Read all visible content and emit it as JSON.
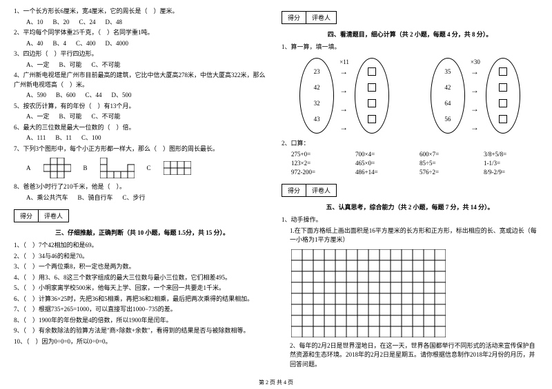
{
  "left": {
    "q1": {
      "text": "1、一个长方形长6厘米，宽4厘米，它的周长是（　）厘米。",
      "opts": [
        "A、10",
        "B、20",
        "C、24",
        "D、48"
      ]
    },
    "q2": {
      "text": "2、平均每个同学体重25千克，（　）名同学重1吨。",
      "opts": [
        "A、40",
        "B、4",
        "C、400",
        "D、4000"
      ]
    },
    "q3": {
      "text": "3、四边形（　）平行四边形。",
      "opts": [
        "A、一定",
        "B、可能",
        "C、不可能"
      ]
    },
    "q4": {
      "text": "4、广州新电视塔是广州市目前最高的建筑，它比中信大厦高278米，中信大厦高322米，那么广州新电视塔高（　）米。",
      "opts": [
        "A、590",
        "B、600",
        "C、44",
        "D、500"
      ]
    },
    "q5": {
      "text": "5、按农历计算，有的年份（　）有13个月。",
      "opts": [
        "A、一定",
        "B、可能",
        "C、不可能"
      ]
    },
    "q6": {
      "text": "6、最大的三位数是最大一位数的（　）倍。",
      "opts": [
        "A、111",
        "B、11",
        "C、100"
      ]
    },
    "q7": {
      "text": "7、下列3个图形中，每个小正方形都一样大，那么（　）图形的周长最长。"
    },
    "q8": {
      "text": "8、爸爸3小时行了210千米，他是（　）。",
      "opts": [
        "A、乘公共汽车",
        "B、骑自行车",
        "C、步行"
      ]
    },
    "scoreLabels": [
      "得分",
      "评卷人"
    ],
    "section3": "三、仔细推敲，正确判断（共 10 小题，每题 1.5分，共 15 分）。",
    "judges": [
      "1、（　）7个42相加的和是69。",
      "2、（　）34与46的和是70。",
      "3、（　）一个两位乘8，积一定也是两为数。",
      "4、（　）用3、6、8这三个数字组成的最大三位数与最小三位数，它们相差495。",
      "5、（　）小明家离学校500米，他每天上学、回家，一个来回一共要走1千米。",
      "6、（　）计算36×25时，先把36和5相乘，再把36和2相乘，最后把两次乘得的结果相加。",
      "7、（　）根据735+265=1000，可以直接写出1000−735的差。",
      "8、（　）1900年的年份数是4的倍数，所以1900年是闰年。",
      "9、（　）有余数除法的验算方法是\"商×除数+余数\"，看得到的结果是否与被除数相等。",
      "10、（　）因为0÷0=0，所以0÷0=0。"
    ],
    "shapeLabels": [
      "A",
      "B",
      "C"
    ]
  },
  "right": {
    "scoreLabels": [
      "得分",
      "评卷人"
    ],
    "section4": "四、看清题目，细心计算（共 2 小题，每题 4 分，共 8 分）。",
    "calc1Title": "1、算一算，填一填。",
    "leftNums": [
      "23",
      "42",
      "32",
      "43"
    ],
    "leftMult": "×11",
    "rightNums": [
      "35",
      "42",
      "64",
      "56"
    ],
    "rightMult": "×30",
    "mentalTitle": "2、口算：",
    "mental": [
      "275+0=",
      "700×4=",
      "600×7=",
      "3/8+5/8=",
      "123×2=",
      "465×0=",
      "85÷5=",
      "1-1/3=",
      "972-200=",
      "486+14=",
      "576÷2=",
      "8/9-2/9="
    ],
    "section5": "五、认真思考，综合能力（共 2 小题，每题 7 分，共 14 分）。",
    "task1": "1、动手操作。",
    "task1desc": "1.在下面方格纸上画出面积是16平方厘米的长方形和正方形，标出相应的长、宽或边长（每一小格为1平方厘米）",
    "task2": "2、每年的2月2日是世界湿地日，在这一天，世界各国都举行不同形式的活动来宣传保护自然资源和生态环境。2018年的2月2日是星期五。请你根据信息制作2018年2月份的月历，并回答问题。"
  },
  "footer": "第 2 页 共 4 页",
  "gridStyle": {
    "cols": 14,
    "rows": 8,
    "cell": 16,
    "stroke": "#000"
  }
}
